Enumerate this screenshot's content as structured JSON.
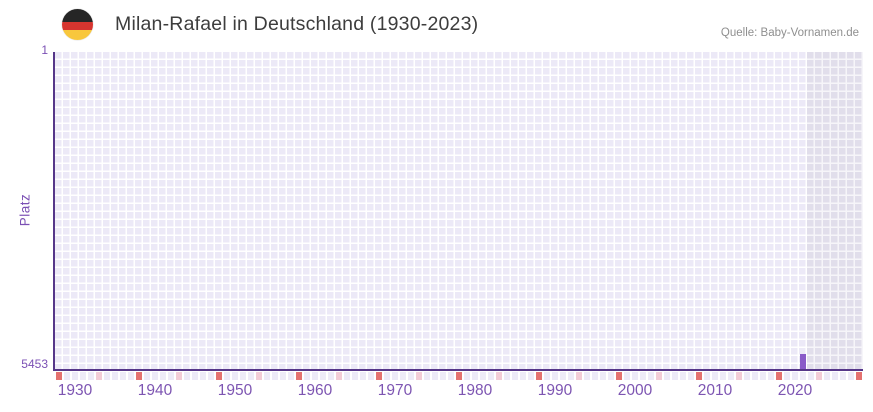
{
  "header": {
    "title": "Milan-Rafael in Deutschland (1930-2023)",
    "source": "Quelle: Baby-Vornamen.de",
    "flag_icon": "germany-flag-icon"
  },
  "chart_data": {
    "type": "bar",
    "title": "Milan-Rafael in Deutschland (1930-2023)",
    "xlabel": "",
    "ylabel": "Platz",
    "y_axis": {
      "min": 1,
      "max": 5453,
      "inverted": true,
      "tick_labels": [
        "1",
        "5453"
      ]
    },
    "x_axis": {
      "display_start": 1928,
      "display_end": 2028,
      "data_start": 1930,
      "data_end": 2023,
      "tick_labels": [
        "1930",
        "1940",
        "1950",
        "1960",
        "1970",
        "1980",
        "1990",
        "2000",
        "2010",
        "2020"
      ]
    },
    "series": [
      {
        "name": "Milan-Rafael",
        "data": [
          {
            "year": 2021,
            "rank": 5200
          }
        ]
      }
    ],
    "future_region": {
      "from_year": 2022,
      "to_year": 2028
    },
    "axis_marks": {
      "dark_every_10_from": 1928,
      "light_every_10_from": 1933
    },
    "legend": "none",
    "grid": "on",
    "colors": {
      "bar": "#8a5bc8",
      "grid_cell": "#ece9f7",
      "grid_cell_future": "#e1deeb",
      "axis_line": "#563689",
      "tick_text": "#7d55b2",
      "mark_dark": "#e4716f",
      "mark_light": "#f3ccd6",
      "mark_default": "#edeaf7",
      "title_text": "#3d3d3d",
      "source_text": "#8f8f8f"
    }
  }
}
